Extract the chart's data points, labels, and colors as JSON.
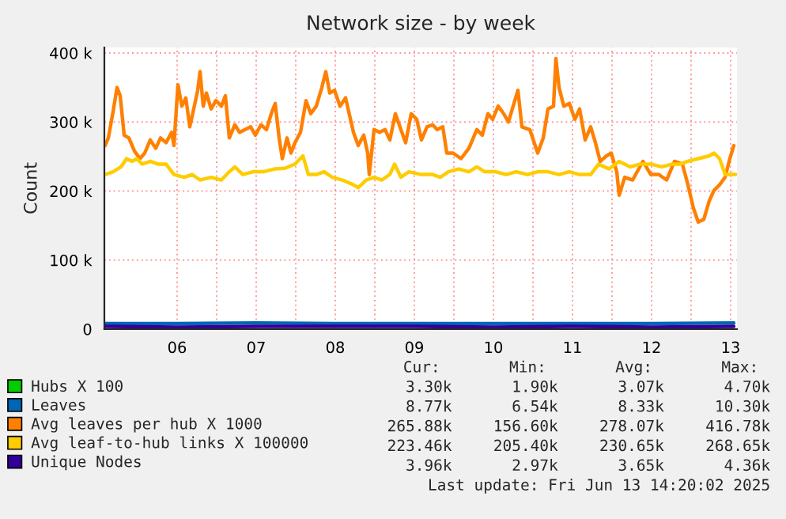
{
  "chart_data": {
    "type": "line",
    "title": "Network size - by week",
    "ylabel": "Count",
    "xlim": [
      5.58,
      13.58
    ],
    "ylim": [
      0,
      408
    ],
    "xticks": [
      {
        "value": 6.5,
        "label": "06"
      },
      {
        "value": 7,
        "label": null
      },
      {
        "value": 7.5,
        "label": "07"
      },
      {
        "value": 8,
        "label": null
      },
      {
        "value": 8.5,
        "label": "08"
      },
      {
        "value": 9,
        "label": null
      },
      {
        "value": 9.5,
        "label": "09"
      },
      {
        "value": 10,
        "label": null
      },
      {
        "value": 10.5,
        "label": "10"
      },
      {
        "value": 11,
        "label": null
      },
      {
        "value": 11.5,
        "label": "11"
      },
      {
        "value": 12,
        "label": null
      },
      {
        "value": 12.5,
        "label": "12"
      },
      {
        "value": 13,
        "label": null
      },
      {
        "value": 13.5,
        "label": "13"
      }
    ],
    "yticks": [
      0,
      {
        "value": 100,
        "label": "100 k"
      },
      {
        "value": 200,
        "label": "200 k"
      },
      {
        "value": 300,
        "label": "300 k"
      },
      {
        "value": 400,
        "label": "400 k"
      }
    ],
    "grid": true,
    "legend": "bottom",
    "line_style": "solid",
    "series": [
      {
        "name": "Hubs X 100",
        "color": "#00cc00",
        "values": [
          null,
          null,
          null,
          null,
          null,
          null,
          null,
          null,
          null
        ]
      },
      {
        "name": "Leaves",
        "color": "#0066b3",
        "x": [
          5.59,
          6.5,
          7.5,
          8.5,
          9.5,
          10.5,
          11.5,
          12.5,
          13.54
        ],
        "values": [
          8,
          8,
          9,
          8,
          8,
          8,
          8,
          8,
          9
        ]
      },
      {
        "name": "Avg leaves per hub X 1000",
        "color": "#ff8000",
        "x": [
          5.59,
          5.63,
          5.69,
          5.74,
          5.78,
          5.83,
          5.89,
          5.96,
          6.03,
          6.09,
          6.16,
          6.23,
          6.29,
          6.36,
          6.43,
          6.46,
          6.51,
          6.56,
          6.61,
          6.66,
          6.71,
          6.76,
          6.79,
          6.83,
          6.87,
          6.93,
          6.99,
          7.06,
          7.11,
          7.16,
          7.23,
          7.29,
          7.36,
          7.43,
          7.49,
          7.56,
          7.63,
          7.69,
          7.74,
          7.79,
          7.83,
          7.89,
          7.94,
          7.99,
          8.06,
          8.13,
          8.19,
          8.26,
          8.33,
          8.38,
          8.43,
          8.49,
          8.56,
          8.63,
          8.73,
          8.79,
          8.86,
          8.91,
          8.93,
          8.99,
          9.06,
          9.13,
          9.19,
          9.26,
          9.33,
          9.39,
          9.46,
          9.53,
          9.59,
          9.66,
          9.73,
          9.79,
          9.86,
          9.91,
          9.99,
          10.09,
          10.19,
          10.29,
          10.36,
          10.43,
          10.49,
          10.56,
          10.63,
          10.69,
          10.76,
          10.81,
          10.86,
          10.96,
          11.06,
          11.13,
          11.19,
          11.26,
          11.29,
          11.33,
          11.39,
          11.46,
          11.53,
          11.59,
          11.66,
          11.73,
          11.79,
          11.85,
          11.93,
          11.99,
          12.06,
          12.09,
          12.16,
          12.26,
          12.39,
          12.49,
          12.59,
          12.69,
          12.79,
          12.89,
          12.96,
          13.03,
          13.09,
          13.16,
          13.23,
          13.29,
          13.36,
          13.43,
          13.49,
          13.54
        ],
        "values": [
          266,
          277,
          315,
          350,
          338,
          281,
          277,
          258,
          247,
          255,
          274,
          262,
          277,
          270,
          285,
          266,
          354,
          323,
          335,
          293,
          319,
          346,
          373,
          323,
          342,
          319,
          331,
          323,
          338,
          277,
          296,
          285,
          289,
          293,
          281,
          296,
          289,
          312,
          327,
          277,
          247,
          277,
          255,
          270,
          285,
          331,
          312,
          323,
          350,
          373,
          342,
          346,
          323,
          335,
          285,
          266,
          281,
          255,
          224,
          289,
          285,
          289,
          274,
          312,
          289,
          270,
          312,
          304,
          274,
          293,
          296,
          289,
          293,
          255,
          255,
          247,
          262,
          289,
          281,
          312,
          304,
          323,
          312,
          300,
          327,
          346,
          293,
          289,
          255,
          277,
          319,
          323,
          392,
          350,
          323,
          327,
          304,
          319,
          274,
          293,
          270,
          243,
          251,
          255,
          228,
          194,
          220,
          216,
          243,
          224,
          224,
          216,
          243,
          239,
          209,
          175,
          155,
          159,
          186,
          201,
          209,
          220,
          247,
          266
        ]
      },
      {
        "name": "Avg leaf-to-hub links X 100000",
        "color": "#ffcc00",
        "x": [
          5.59,
          5.69,
          5.79,
          5.86,
          5.93,
          5.99,
          6.06,
          6.16,
          6.26,
          6.36,
          6.46,
          6.59,
          6.69,
          6.79,
          6.93,
          7.06,
          7.16,
          7.23,
          7.33,
          7.46,
          7.59,
          7.73,
          7.86,
          7.99,
          8.09,
          8.16,
          8.26,
          8.36,
          8.46,
          8.59,
          8.73,
          8.79,
          8.89,
          8.99,
          9.09,
          9.19,
          9.25,
          9.33,
          9.43,
          9.59,
          9.73,
          9.83,
          9.93,
          10.06,
          10.19,
          10.29,
          10.39,
          10.53,
          10.66,
          10.79,
          10.93,
          11.06,
          11.19,
          11.33,
          11.46,
          11.59,
          11.73,
          11.83,
          11.96,
          12.09,
          12.23,
          12.36,
          12.49,
          12.63,
          12.76,
          12.86,
          12.96,
          13.09,
          13.23,
          13.29,
          13.36,
          13.43,
          13.49,
          13.56
        ],
        "values": [
          224,
          228,
          235,
          247,
          243,
          247,
          239,
          243,
          239,
          239,
          224,
          220,
          224,
          216,
          220,
          216,
          228,
          235,
          224,
          228,
          228,
          232,
          233,
          239,
          251,
          224,
          224,
          228,
          220,
          216,
          209,
          205,
          216,
          220,
          216,
          224,
          239,
          220,
          228,
          224,
          224,
          220,
          228,
          232,
          228,
          235,
          228,
          228,
          224,
          228,
          224,
          228,
          228,
          224,
          228,
          224,
          224,
          239,
          232,
          243,
          235,
          239,
          239,
          235,
          239,
          239,
          243,
          247,
          251,
          255,
          247,
          224,
          224,
          224
        ]
      },
      {
        "name": "Unique Nodes",
        "color": "#330099",
        "x": [
          5.59,
          6.5,
          7.5,
          8.5,
          9.5,
          10.5,
          11.5,
          12.5,
          13.54
        ],
        "values": [
          4,
          3,
          4,
          4,
          4,
          3,
          4,
          3,
          4
        ]
      }
    ],
    "annotations": [
      "Cur:",
      "Min:",
      "Avg:",
      "Max:",
      "3.30k",
      "1.90k",
      "3.07k",
      "4.70k",
      "8.77k",
      "6.54k",
      "8.33k",
      "10.30k",
      "265.88k",
      "156.60k",
      "278.07k",
      "416.78k",
      "223.46k",
      "205.40k",
      "230.65k",
      "268.65k",
      "3.96k",
      "2.97k",
      "3.65k",
      "4.36k",
      "Last update: Fri Jun 13 14:20:02 2025"
    ]
  }
}
